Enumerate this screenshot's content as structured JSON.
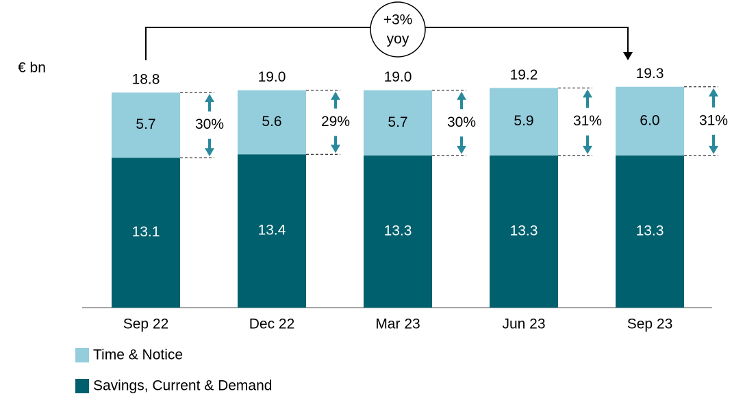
{
  "chart_data": {
    "type": "stacked_bar",
    "unit_label": "€ bn",
    "categories": [
      "Sep 22",
      "Dec 22",
      "Mar 23",
      "Jun 23",
      "Sep 23"
    ],
    "series": [
      {
        "name": "Savings, Current & Demand",
        "color": "#00606e",
        "label_color": "#ffffff",
        "values": [
          13.1,
          13.4,
          13.3,
          13.3,
          13.3
        ]
      },
      {
        "name": "Time & Notice",
        "color": "#94cddc",
        "label_color": "#000000",
        "values": [
          5.7,
          5.6,
          5.7,
          5.9,
          6.0
        ],
        "value_labels": [
          "5.7",
          "5.6",
          "5.7",
          "5.9",
          "6.0"
        ]
      }
    ],
    "totals": {
      "values": [
        18.8,
        19.0,
        19.0,
        19.2,
        19.3
      ],
      "value_labels": [
        "18.8",
        "19.0",
        "19.0",
        "19.2",
        "19.3"
      ]
    },
    "shares": {
      "values": [
        30,
        29,
        30,
        31,
        31
      ],
      "value_labels": [
        "30%",
        "29%",
        "30%",
        "31%",
        "31%"
      ],
      "color": "#2a8a9c"
    },
    "annotation": {
      "value": 3,
      "label": "+3%",
      "sublabel": "yoy"
    }
  }
}
